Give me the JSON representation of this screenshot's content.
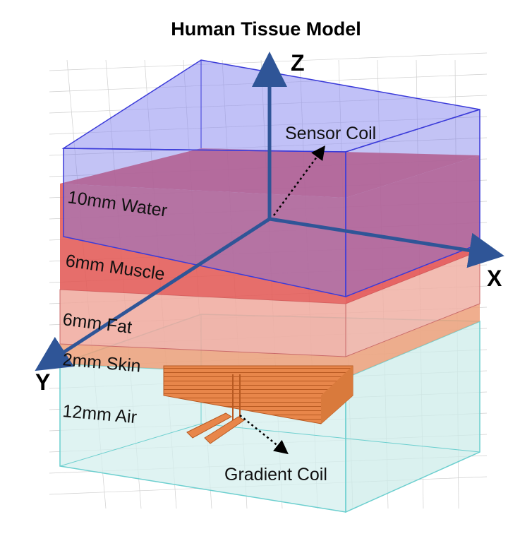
{
  "title": "Human Tissue Model",
  "axes": {
    "z": "Z",
    "x": "X",
    "y": "Y"
  },
  "layers": [
    {
      "label": "10mm Water",
      "thickness_mm": 10,
      "color": "#6f6fe8"
    },
    {
      "label": "6mm Muscle",
      "thickness_mm": 6,
      "color": "#d93a3a"
    },
    {
      "label": "6mm Fat",
      "thickness_mm": 6,
      "color": "#e98a7e"
    },
    {
      "label": "2mm Skin",
      "thickness_mm": 2,
      "color": "#e9925a"
    },
    {
      "label": "12mm Air",
      "thickness_mm": 12,
      "color": "#bfe6e4"
    }
  ],
  "annotations": {
    "sensor_coil": "Sensor Coil",
    "gradient_coil": "Gradient Coil"
  },
  "colors": {
    "axis": "#2f5597",
    "water_edge": "#3b3bd9",
    "air_edge": "#6ccfcf",
    "coil": "#e07b39",
    "grid": "#c9c9c9"
  }
}
